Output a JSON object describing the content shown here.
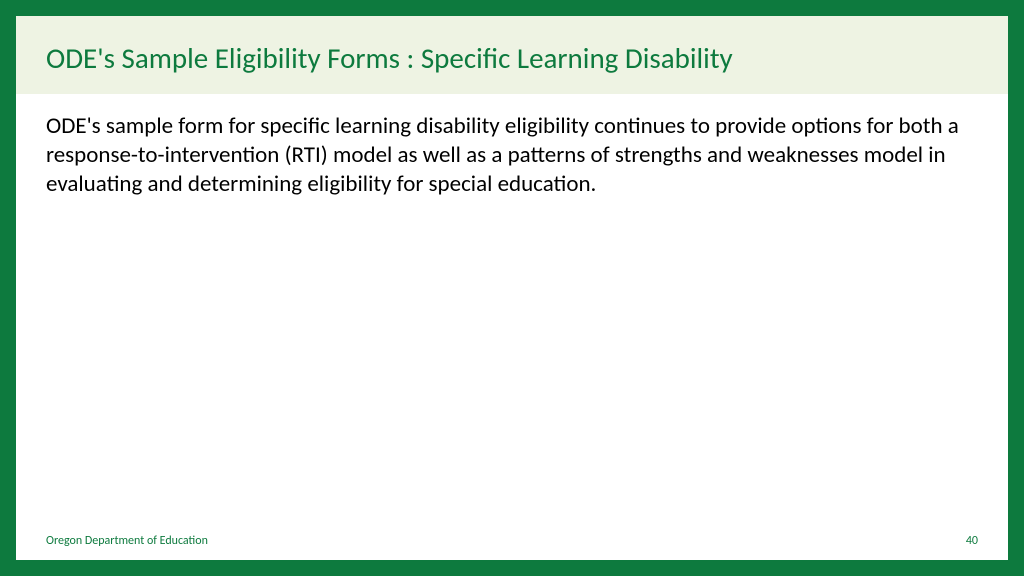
{
  "colors": {
    "border": "#0d7a3e",
    "title_bar_bg": "#eef3e3",
    "title_text": "#0d7a3e",
    "body_text": "#000000",
    "footer_text": "#0d7a3e"
  },
  "title": "ODE's Sample Eligibility Forms : Specific Learning Disability",
  "body": "ODE's sample form for specific learning disability eligibility continues to provide options for both a response-to-intervention (RTI) model as well as a patterns of strengths and weaknesses model in evaluating and determining eligibility for special education.",
  "footer": {
    "organization": "Oregon Department of Education",
    "page_number": "40"
  },
  "typography": {
    "title_fontsize": 29,
    "body_fontsize": 23,
    "footer_fontsize": 12
  }
}
